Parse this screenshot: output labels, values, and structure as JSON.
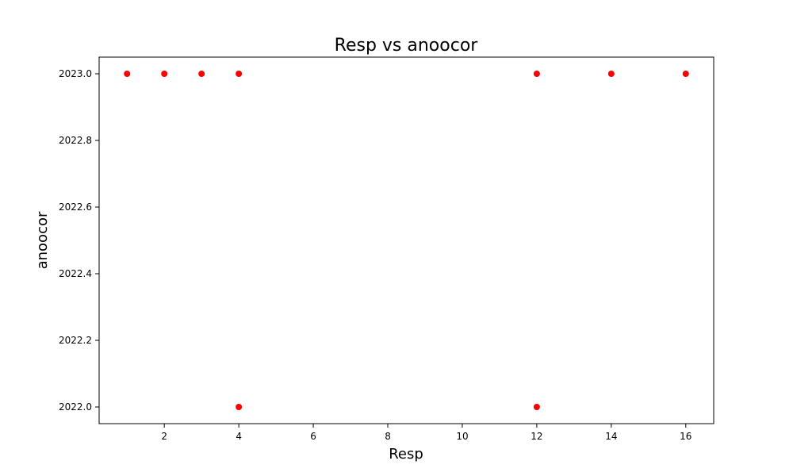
{
  "chart_data": {
    "type": "scatter",
    "title": "Resp vs anoocor",
    "xlabel": "Resp",
    "ylabel": "anoocor",
    "xlim": [
      0.25,
      16.75
    ],
    "ylim": [
      2021.95,
      2023.05
    ],
    "x_ticks": [
      2,
      4,
      6,
      8,
      10,
      12,
      14,
      16
    ],
    "y_ticks": [
      2022.0,
      2022.2,
      2022.4,
      2022.6,
      2022.8,
      2023.0
    ],
    "x_tick_labels": [
      "2",
      "4",
      "6",
      "8",
      "10",
      "12",
      "14",
      "16"
    ],
    "y_tick_labels": [
      "2022.0",
      "2022.2",
      "2022.4",
      "2022.6",
      "2022.8",
      "2023.0"
    ],
    "grid": false,
    "marker_color": "#ff0000",
    "points": [
      {
        "x": 1,
        "y": 2023.0
      },
      {
        "x": 2,
        "y": 2023.0
      },
      {
        "x": 3,
        "y": 2023.0
      },
      {
        "x": 4,
        "y": 2023.0
      },
      {
        "x": 12,
        "y": 2023.0
      },
      {
        "x": 14,
        "y": 2023.0
      },
      {
        "x": 16,
        "y": 2023.0
      },
      {
        "x": 4,
        "y": 2022.0
      },
      {
        "x": 12,
        "y": 2022.0
      }
    ]
  }
}
